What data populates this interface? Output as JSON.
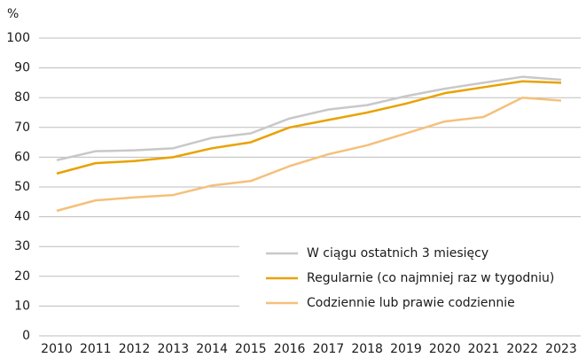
{
  "chart_data": {
    "type": "line",
    "y_label": "%",
    "x": [
      "2010",
      "2011",
      "2012",
      "2013",
      "2014",
      "2015",
      "2016",
      "2017",
      "2018",
      "2019",
      "2020",
      "2021",
      "2022",
      "2023"
    ],
    "series": [
      {
        "name": "W ciągu ostatnich 3 miesięcy",
        "color": "#c8c8c8",
        "values": [
          59,
          62,
          62.3,
          63,
          66.5,
          68,
          73,
          76,
          77.5,
          80.5,
          83,
          85,
          87,
          86
        ]
      },
      {
        "name": "Regularnie (co najmniej raz w tygodniu)",
        "color": "#e8a200",
        "values": [
          54.5,
          58,
          58.7,
          60,
          63,
          65,
          70,
          72.5,
          75,
          78,
          81.5,
          83.5,
          85.5,
          85
        ]
      },
      {
        "name": "Codziennie lub prawie codziennie",
        "color": "#f5c07a",
        "values": [
          42,
          45.5,
          46.5,
          47.3,
          50.5,
          52,
          57,
          61,
          64,
          68,
          72,
          73.5,
          80,
          79
        ]
      }
    ],
    "ylim": [
      0,
      100
    ],
    "yticks": [
      0,
      10,
      20,
      30,
      40,
      50,
      60,
      70,
      80,
      90,
      100
    ],
    "grid": true,
    "legend": "lower right"
  }
}
